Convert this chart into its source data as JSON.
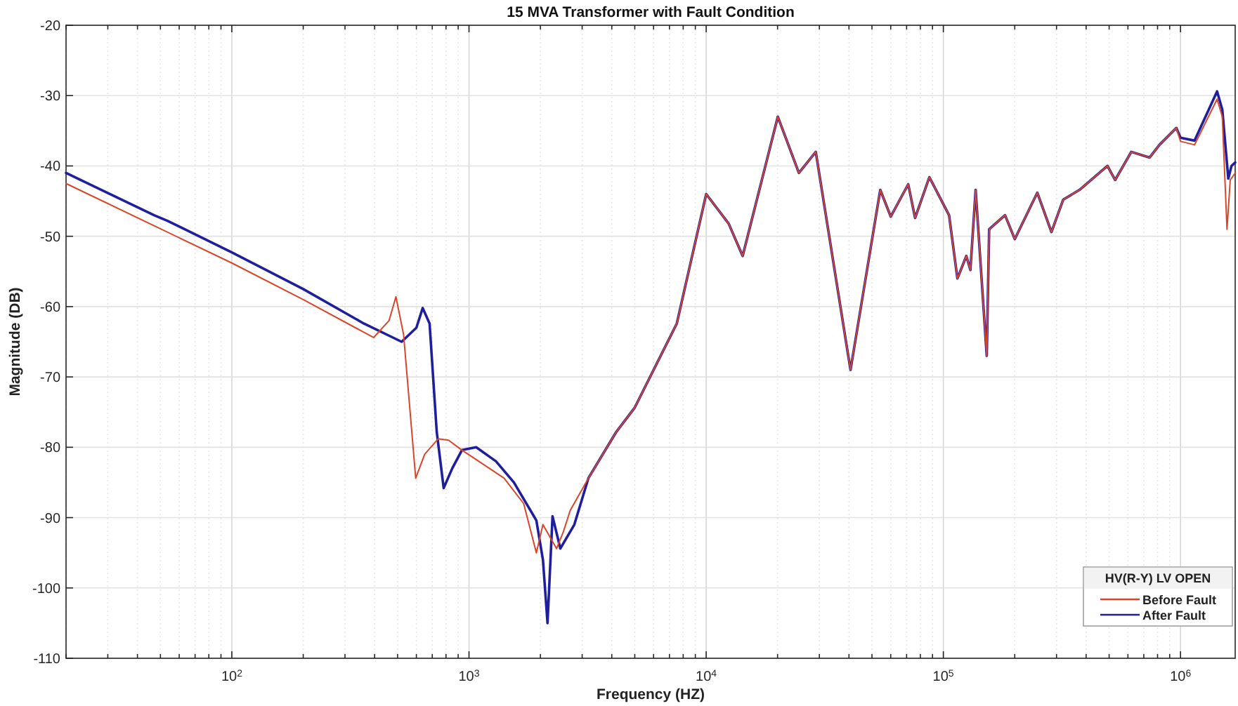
{
  "chart_data": {
    "type": "line",
    "title": "15 MVA Transformer with Fault Condition",
    "xlabel": "Frequency (HZ)",
    "ylabel": "Magnitude (DB)",
    "legend_title": "HV(R-Y) LV OPEN",
    "legend": "bottom right",
    "grid": true,
    "log": "x",
    "line_style": "solid",
    "marker": "none",
    "xlim": [
      20,
      1700000
    ],
    "ylim": [
      -110,
      -20
    ],
    "yticks": [
      -110,
      -100,
      -90,
      -80,
      -70,
      -60,
      -50,
      -40,
      -30,
      -20
    ],
    "xticks": [
      {
        "value": 20,
        "label": null
      },
      {
        "value": 30,
        "label": null
      },
      {
        "value": 40,
        "label": null
      },
      {
        "value": 50,
        "label": null
      },
      {
        "value": 60,
        "label": null
      },
      {
        "value": 70,
        "label": null
      },
      {
        "value": 80,
        "label": null
      },
      {
        "value": 90,
        "label": null
      },
      {
        "value": 100,
        "label": "10$^{2}$"
      },
      {
        "value": 200,
        "label": null
      },
      {
        "value": 300,
        "label": null
      },
      {
        "value": 400,
        "label": null
      },
      {
        "value": 500,
        "label": null
      },
      {
        "value": 600,
        "label": null
      },
      {
        "value": 700,
        "label": null
      },
      {
        "value": 800,
        "label": null
      },
      {
        "value": 900,
        "label": null
      },
      {
        "value": 1000,
        "label": "10$^{3}$"
      },
      {
        "value": 2000,
        "label": null
      },
      {
        "value": 3000,
        "label": null
      },
      {
        "value": 4000,
        "label": null
      },
      {
        "value": 5000,
        "label": null
      },
      {
        "value": 6000,
        "label": null
      },
      {
        "value": 7000,
        "label": null
      },
      {
        "value": 8000,
        "label": null
      },
      {
        "value": 9000,
        "label": null
      },
      {
        "value": 10000,
        "label": "10$^{4}$"
      },
      {
        "value": 20000,
        "label": null
      },
      {
        "value": 30000,
        "label": null
      },
      {
        "value": 40000,
        "label": null
      },
      {
        "value": 50000,
        "label": null
      },
      {
        "value": 60000,
        "label": null
      },
      {
        "value": 70000,
        "label": null
      },
      {
        "value": 80000,
        "label": null
      },
      {
        "value": 90000,
        "label": null
      },
      {
        "value": 100000,
        "label": "10$^{5}$"
      },
      {
        "value": 200000,
        "label": null
      },
      {
        "value": 300000,
        "label": null
      },
      {
        "value": 400000,
        "label": null
      },
      {
        "value": 500000,
        "label": null
      },
      {
        "value": 600000,
        "label": null
      },
      {
        "value": 700000,
        "label": null
      },
      {
        "value": 800000,
        "label": null
      },
      {
        "value": 900000,
        "label": null
      },
      {
        "value": 1000000,
        "label": "10$^{6}$"
      }
    ],
    "series": [
      {
        "name": "Before Fault",
        "color": "#d9452b",
        "x": [
          20,
          47,
          100,
          200,
          396,
          460,
          492,
          530,
          596,
          650,
          741,
          820,
          933,
          1100,
          1406,
          1700,
          1923,
          2050,
          2340,
          2500,
          2670,
          3186,
          4180,
          4990,
          7520,
          10000,
          12440,
          14250,
          20050,
          24600,
          28980,
          40600,
          54200,
          60000,
          71100,
          76000,
          87300,
          105700,
          114600,
          125000,
          130000,
          136800,
          152400,
          156000,
          182000,
          200000,
          249000,
          285600,
          320000,
          375000,
          492000,
          530000,
          620000,
          741000,
          815000,
          960000,
          1000000,
          1146000,
          1426000,
          1500000,
          1570000,
          1620000,
          1700000
        ],
        "values": [
          -42.5,
          -48.5,
          -53.8,
          -59,
          -64.4,
          -62,
          -58.6,
          -64,
          -84.4,
          -81,
          -78.8,
          -79,
          -80.4,
          -82,
          -84.4,
          -88,
          -95,
          -91,
          -94.4,
          -92,
          -89,
          -84.4,
          -77.8,
          -74.4,
          -62.4,
          -44,
          -48.2,
          -52.8,
          -33,
          -41,
          -38,
          -69,
          -43.4,
          -47.2,
          -42.6,
          -47.4,
          -41.6,
          -47,
          -56,
          -52.8,
          -54.8,
          -43.4,
          -67,
          -49,
          -47,
          -50.4,
          -43.8,
          -49.4,
          -44.8,
          -43.4,
          -40,
          -42,
          -38,
          -38.8,
          -37,
          -34.6,
          -36.5,
          -37,
          -30.5,
          -33,
          -49,
          -42,
          -41
        ]
      },
      {
        "name": "After Fault",
        "color": "#1f1f9e",
        "x": [
          20,
          47,
          53.5,
          100,
          200,
          360,
          520,
          600,
          638,
          682,
          731,
          782,
          850,
          934,
          1072,
          1300,
          1546,
          1923,
          2050,
          2143,
          2250,
          2427,
          2780,
          3186,
          4180,
          4990,
          7520,
          10000,
          12440,
          14250,
          20050,
          24600,
          28980,
          40600,
          54200,
          60000,
          71100,
          76000,
          87300,
          105700,
          114600,
          125000,
          130000,
          136800,
          152400,
          156000,
          182000,
          200000,
          249000,
          285600,
          320000,
          375000,
          492000,
          530000,
          620000,
          741000,
          815000,
          960000,
          1000000,
          1146000,
          1426000,
          1500000,
          1590000,
          1640000,
          1700000
        ],
        "values": [
          -41,
          -47,
          -47.8,
          -52.3,
          -57.5,
          -62.4,
          -65,
          -63,
          -60.2,
          -62.4,
          -77.8,
          -85.8,
          -83,
          -80.4,
          -80,
          -82,
          -85,
          -90.4,
          -96,
          -105,
          -89.8,
          -94.4,
          -91,
          -84.4,
          -77.8,
          -74.4,
          -62.4,
          -44,
          -48.2,
          -52.8,
          -33,
          -41,
          -38,
          -69,
          -43.4,
          -47.2,
          -42.6,
          -47.4,
          -41.6,
          -47,
          -56,
          -52.8,
          -54.8,
          -43.4,
          -67,
          -49,
          -47,
          -50.4,
          -43.8,
          -49.4,
          -44.8,
          -43.4,
          -40,
          -42,
          -38,
          -38.8,
          -37,
          -34.6,
          -36,
          -36.4,
          -29.4,
          -32,
          -41.8,
          -40,
          -39.5
        ]
      }
    ]
  }
}
